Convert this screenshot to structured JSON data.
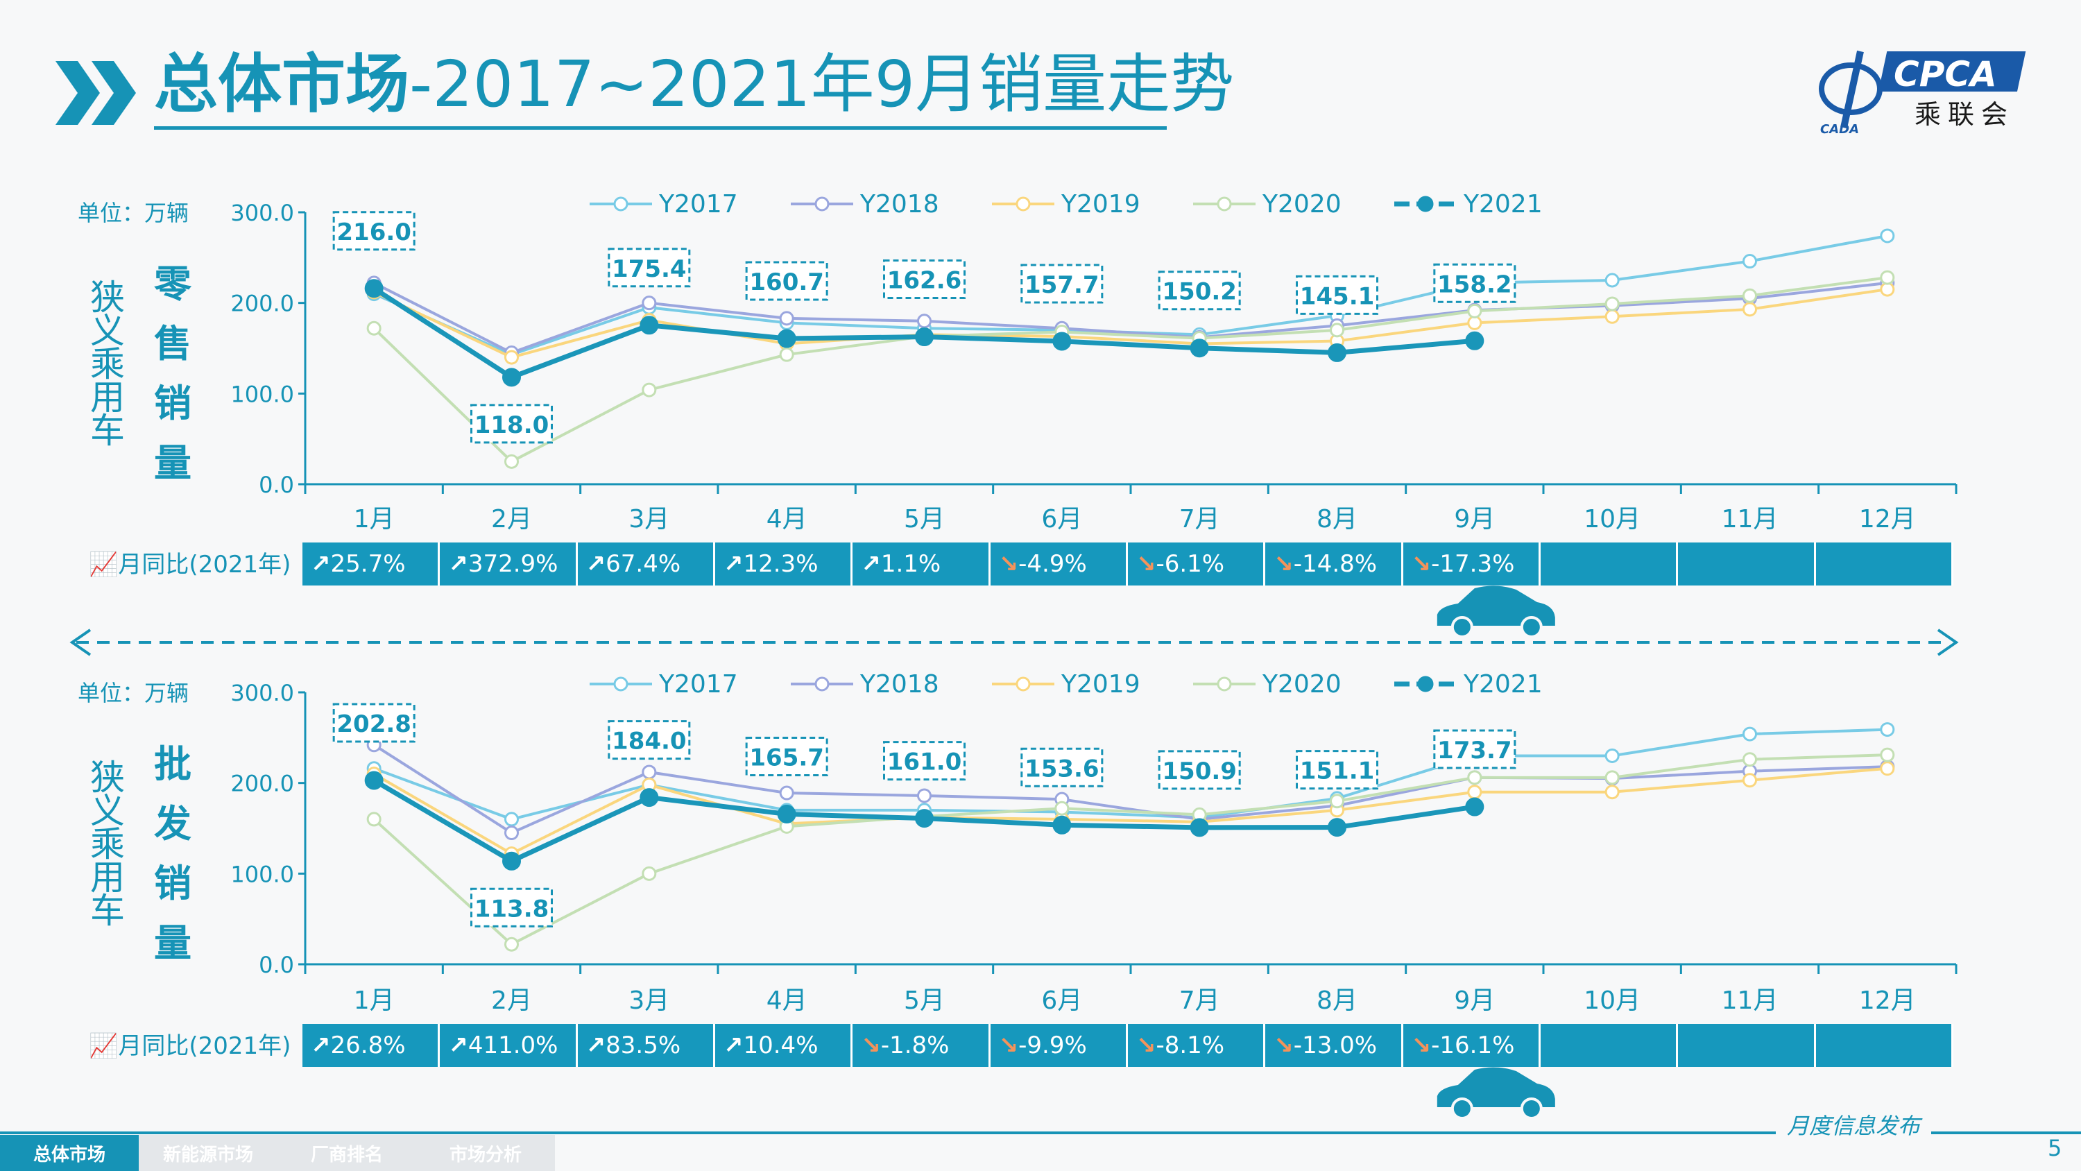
{
  "title": {
    "bold": "总体市场",
    "rest": "-2017~2021年9月销量走势"
  },
  "logo": {
    "brand": "CPCA",
    "org": "乘联会",
    "sub": "CADA"
  },
  "legend": [
    "Y2017",
    "Y2018",
    "Y2019",
    "Y2020",
    "Y2021"
  ],
  "colors": {
    "Y2017": "#78cbe6",
    "Y2018": "#9aa6de",
    "Y2019": "#fad67d",
    "Y2020": "#c3dfb3",
    "Y2021": "#1a96b9",
    "accent": "#1693b6",
    "down": "#f4935b"
  },
  "unit_label": "单位：万辆",
  "yoy_label": "月同比(2021年)",
  "footer_note": "月度信息发布",
  "page_number": "5",
  "nav": [
    "总体市场",
    "新能源市场",
    "厂商排名",
    "市场分析"
  ],
  "chart_data": [
    {
      "type": "line",
      "title": "零售销量",
      "side_label": "狭义乘用车",
      "ylim": [
        0,
        300
      ],
      "yticks": [
        "300.0",
        "200.0",
        "100.0",
        "0.0"
      ],
      "categories": [
        "1月",
        "2月",
        "3月",
        "4月",
        "5月",
        "6月",
        "7月",
        "8月",
        "9月",
        "10月",
        "11月",
        "12月"
      ],
      "series": [
        {
          "name": "Y2017",
          "values": [
            210,
            143,
            195,
            178,
            172,
            170,
            165,
            186,
            222,
            225,
            246,
            274
          ]
        },
        {
          "name": "Y2018",
          "values": [
            222,
            145,
            200,
            183,
            180,
            172,
            162,
            175,
            192,
            197,
            205,
            222
          ]
        },
        {
          "name": "Y2019",
          "values": [
            212,
            140,
            181,
            155,
            165,
            163,
            155,
            158,
            178,
            185,
            193,
            215
          ]
        },
        {
          "name": "Y2020",
          "values": [
            172,
            25,
            104,
            143,
            163,
            168,
            161,
            170,
            191,
            199,
            208,
            228
          ]
        },
        {
          "name": "Y2021",
          "values": [
            216.0,
            118.0,
            175.4,
            160.7,
            162.6,
            157.7,
            150.2,
            145.1,
            158.2,
            null,
            null,
            null
          ]
        }
      ],
      "data_labels": [
        "216.0",
        "118.0",
        "175.4",
        "160.7",
        "162.6",
        "157.7",
        "150.2",
        "145.1",
        "158.2"
      ],
      "yoy": [
        {
          "v": "25.7%",
          "dir": "up"
        },
        {
          "v": "372.9%",
          "dir": "up"
        },
        {
          "v": "67.4%",
          "dir": "up"
        },
        {
          "v": "12.3%",
          "dir": "up"
        },
        {
          "v": "1.1%",
          "dir": "up"
        },
        {
          "v": "-4.9%",
          "dir": "down"
        },
        {
          "v": "-6.1%",
          "dir": "down"
        },
        {
          "v": "-14.8%",
          "dir": "down"
        },
        {
          "v": "-17.3%",
          "dir": "down"
        },
        {
          "v": "",
          "dir": ""
        },
        {
          "v": "",
          "dir": ""
        },
        {
          "v": "",
          "dir": ""
        }
      ]
    },
    {
      "type": "line",
      "title": "批发销量",
      "side_label": "狭义乘用车",
      "ylim": [
        0,
        300
      ],
      "yticks": [
        "300.0",
        "200.0",
        "100.0",
        "0.0"
      ],
      "categories": [
        "1月",
        "2月",
        "3月",
        "4月",
        "5月",
        "6月",
        "7月",
        "8月",
        "9月",
        "10月",
        "11月",
        "12月"
      ],
      "series": [
        {
          "name": "Y2017",
          "values": [
            216,
            160,
            198,
            170,
            170,
            168,
            162,
            183,
            230,
            230,
            254,
            259
          ]
        },
        {
          "name": "Y2018",
          "values": [
            242,
            145,
            212,
            189,
            186,
            182,
            160,
            175,
            206,
            205,
            213,
            218
          ]
        },
        {
          "name": "Y2019",
          "values": [
            210,
            122,
            198,
            155,
            162,
            160,
            157,
            170,
            190,
            190,
            203,
            216
          ]
        },
        {
          "name": "Y2020",
          "values": [
            160,
            22,
            100,
            152,
            163,
            172,
            165,
            180,
            206,
            206,
            226,
            231
          ]
        },
        {
          "name": "Y2021",
          "values": [
            202.8,
            113.8,
            184.0,
            165.7,
            161.0,
            153.6,
            150.9,
            151.1,
            173.7,
            null,
            null,
            null
          ]
        }
      ],
      "data_labels": [
        "202.8",
        "113.8",
        "184.0",
        "165.7",
        "161.0",
        "153.6",
        "150.9",
        "151.1",
        "173.7"
      ],
      "yoy": [
        {
          "v": "26.8%",
          "dir": "up"
        },
        {
          "v": "411.0%",
          "dir": "up"
        },
        {
          "v": "83.5%",
          "dir": "up"
        },
        {
          "v": "10.4%",
          "dir": "up"
        },
        {
          "v": "-1.8%",
          "dir": "down"
        },
        {
          "v": "-9.9%",
          "dir": "down"
        },
        {
          "v": "-8.1%",
          "dir": "down"
        },
        {
          "v": "-13.0%",
          "dir": "down"
        },
        {
          "v": "-16.1%",
          "dir": "down"
        },
        {
          "v": "",
          "dir": ""
        },
        {
          "v": "",
          "dir": ""
        },
        {
          "v": "",
          "dir": ""
        }
      ]
    }
  ]
}
